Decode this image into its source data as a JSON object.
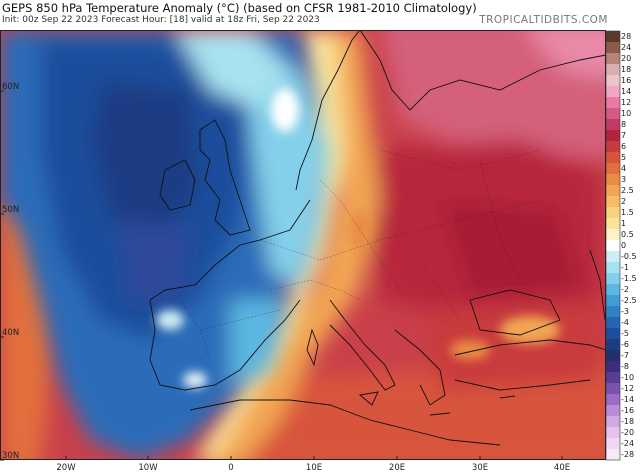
{
  "header": {
    "title": "GEPS 850 hPa Temperature Anomaly (°C) (based on CFSR 1981-2010 Climatology)",
    "subtitle": "Init: 00z Sep 22 2023   Forecast Hour: [18]   valid at 18z Fri, Sep 22 2023",
    "brand": "TROPICALTIDBITS.COM"
  },
  "axes": {
    "lat_labels": [
      "60N",
      "50N",
      "40N",
      "30N"
    ],
    "lon_labels": [
      "20W",
      "10W",
      "0",
      "10E",
      "20E",
      "30E",
      "40E"
    ]
  },
  "colorbar": {
    "levels": [
      "28",
      "24",
      "20",
      "18",
      "16",
      "14",
      "12",
      "10",
      "8",
      "7",
      "6",
      "5",
      "4",
      "3",
      "2.5",
      "2",
      "1.5",
      "1",
      "0.5",
      "0",
      "-0.5",
      "-1",
      "-1.5",
      "-2",
      "-2.5",
      "-3",
      "-4",
      "-5",
      "-6",
      "-7",
      "-8",
      "-10",
      "-12",
      "-14",
      "-16",
      "-18",
      "-20",
      "-24",
      "-28"
    ],
    "colors": [
      "#5a3a2a",
      "#8c5a46",
      "#b98478",
      "#d8aeb0",
      "#eac6cc",
      "#f2a6c2",
      "#e87ca6",
      "#d65a86",
      "#c23a66",
      "#b3223e",
      "#c93a3e",
      "#d8543c",
      "#e2703e",
      "#ea8c44",
      "#f2a652",
      "#f6bd66",
      "#f9d27e",
      "#fbe49a",
      "#fdf3c4",
      "#ffffff",
      "#cdeef6",
      "#a8e2f0",
      "#84d0ea",
      "#5cb7e2",
      "#3f9cd6",
      "#2f82c6",
      "#2466b2",
      "#1c4e9c",
      "#1a3c84",
      "#22306c",
      "#3a2e7a",
      "#5a3c96",
      "#7a52b0",
      "#9a6cc6",
      "#ba8cd8",
      "#d2a8e2",
      "#e4c4ec",
      "#eed8f2",
      "#f6eaf8"
    ]
  }
}
